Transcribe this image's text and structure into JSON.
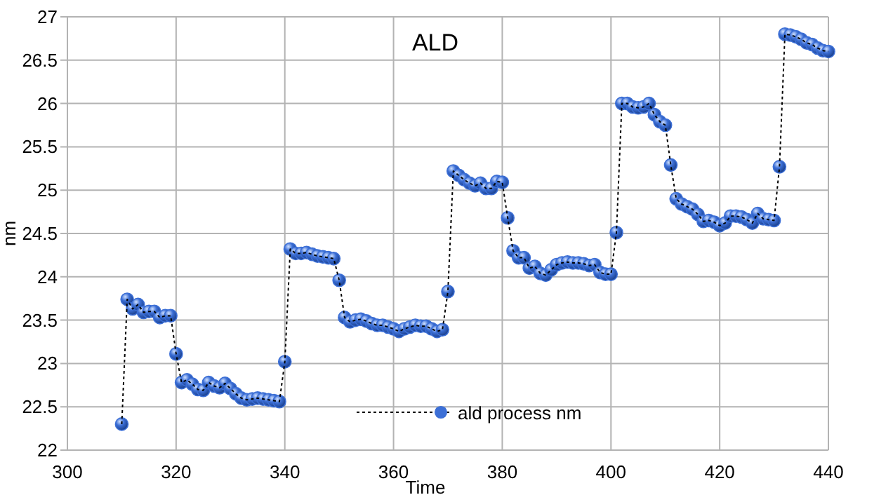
{
  "chart_data": {
    "type": "line",
    "title": "ALD",
    "xlabel": "Time",
    "ylabel": "nm",
    "xlim": [
      300,
      440
    ],
    "xticks": [
      300,
      320,
      340,
      360,
      380,
      400,
      420,
      440
    ],
    "ylim": [
      22,
      27
    ],
    "yticks": [
      22,
      22.5,
      23,
      23.5,
      24,
      24.5,
      25,
      25.5,
      26,
      26.5,
      27
    ],
    "grid": true,
    "legend": "bottom",
    "marker": "circle",
    "line_style": "dotted",
    "series": [
      {
        "name": "ald process nm",
        "color": "#3c6fd6",
        "x": [
          310,
          311,
          312,
          313,
          314,
          315,
          316,
          317,
          318,
          319,
          320,
          321,
          322,
          323,
          324,
          325,
          326,
          327,
          328,
          329,
          330,
          331,
          332,
          333,
          334,
          335,
          336,
          337,
          338,
          339,
          340,
          341,
          342,
          343,
          344,
          345,
          346,
          347,
          348,
          349,
          350,
          351,
          352,
          353,
          354,
          355,
          356,
          357,
          358,
          359,
          360,
          361,
          362,
          363,
          364,
          365,
          366,
          367,
          368,
          369,
          370,
          371,
          372,
          373,
          374,
          375,
          376,
          377,
          378,
          379,
          380,
          381,
          382,
          383,
          384,
          385,
          386,
          387,
          388,
          389,
          390,
          391,
          392,
          393,
          394,
          395,
          396,
          397,
          398,
          399,
          400,
          401,
          402,
          403,
          404,
          405,
          406,
          407,
          408,
          409,
          410,
          411,
          412,
          413,
          414,
          415,
          416,
          417,
          418,
          419,
          420,
          421,
          422,
          423,
          424,
          425,
          426,
          427,
          428,
          429,
          430,
          431,
          432,
          433,
          434,
          435,
          436,
          437,
          438,
          439,
          440
        ],
        "values": [
          22.3,
          23.74,
          23.63,
          23.68,
          23.59,
          23.6,
          23.6,
          23.53,
          23.55,
          23.55,
          23.11,
          22.78,
          22.81,
          22.76,
          22.7,
          22.69,
          22.78,
          22.74,
          22.72,
          22.77,
          22.71,
          22.65,
          22.6,
          22.58,
          22.59,
          22.6,
          22.59,
          22.58,
          22.57,
          22.56,
          23.02,
          24.32,
          24.27,
          24.27,
          24.28,
          24.26,
          24.24,
          24.23,
          24.22,
          24.21,
          23.96,
          23.53,
          23.48,
          23.5,
          23.51,
          23.49,
          23.46,
          23.44,
          23.44,
          23.42,
          23.4,
          23.37,
          23.4,
          23.42,
          23.44,
          23.43,
          23.43,
          23.4,
          23.37,
          23.39,
          23.83,
          25.22,
          25.17,
          25.12,
          25.08,
          25.05,
          25.08,
          25.02,
          25.02,
          25.1,
          25.09,
          24.68,
          24.3,
          24.22,
          24.22,
          24.1,
          24.12,
          24.04,
          24.02,
          24.08,
          24.14,
          24.16,
          24.17,
          24.16,
          24.16,
          24.15,
          24.13,
          24.14,
          24.05,
          24.03,
          24.03,
          24.51,
          26.0,
          26.0,
          25.96,
          25.95,
          25.96,
          26.0,
          25.87,
          25.79,
          25.75,
          25.29,
          24.9,
          24.84,
          24.81,
          24.78,
          24.72,
          24.64,
          24.65,
          24.63,
          24.59,
          24.62,
          24.7,
          24.7,
          24.69,
          24.66,
          24.62,
          24.73,
          24.67,
          24.66,
          24.65,
          25.27,
          26.8,
          26.79,
          26.77,
          26.74,
          26.7,
          26.68,
          26.64,
          26.61,
          26.6
        ]
      }
    ]
  }
}
